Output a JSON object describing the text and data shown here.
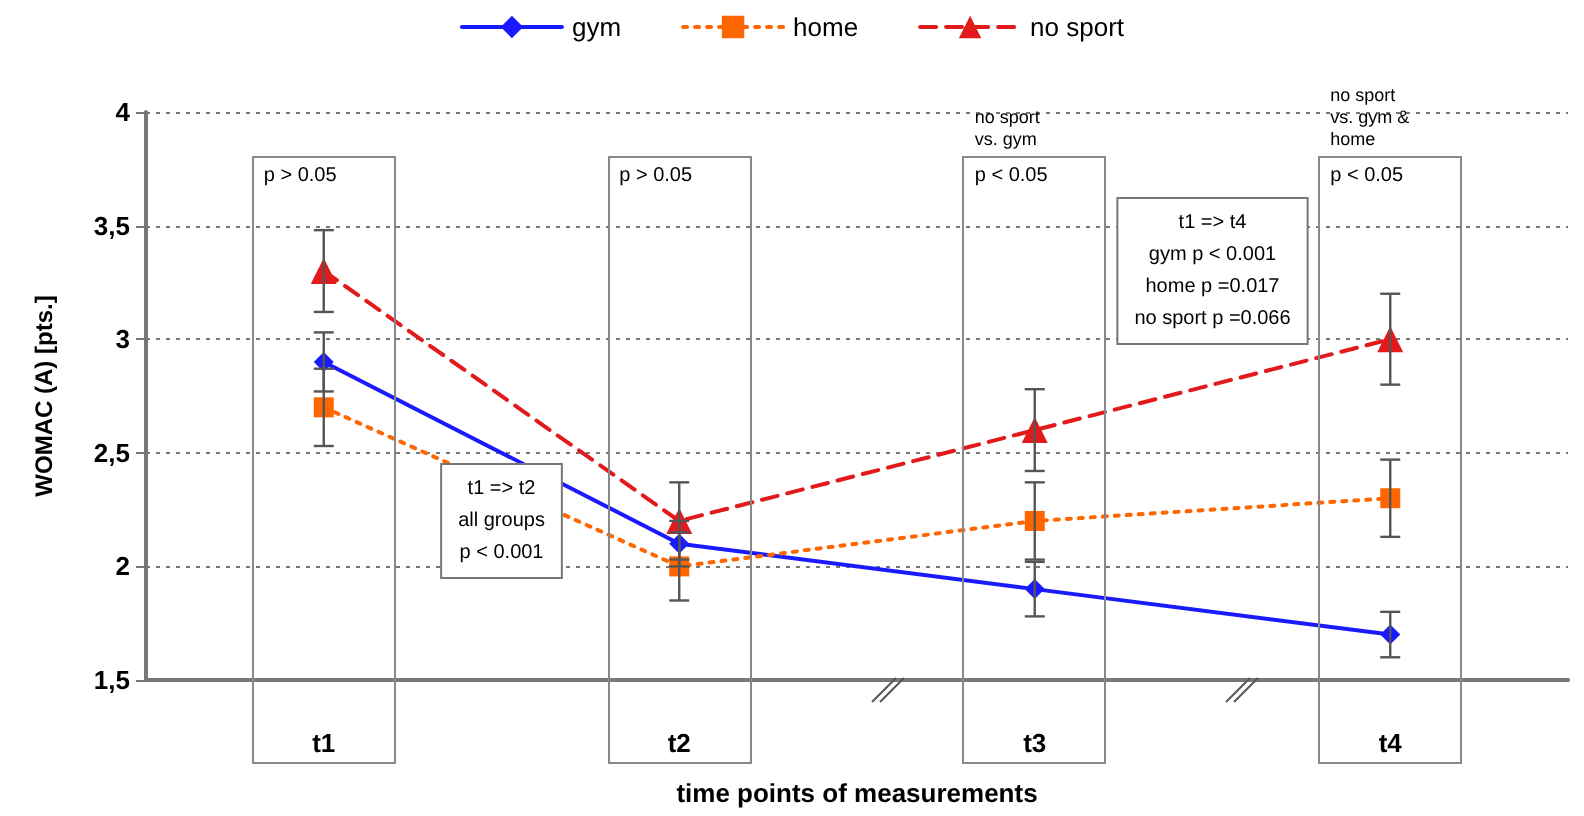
{
  "chart_data": {
    "type": "line",
    "xlabel": "time points of measurements",
    "ylabel": "WOMAC (A) [pts.]",
    "categories": [
      "t1",
      "t2",
      "t3",
      "t4"
    ],
    "series": [
      {
        "name": "gym",
        "color": "#1a1aff",
        "values": [
          2.9,
          2.1,
          1.9,
          1.7
        ],
        "errors": [
          0.13,
          0.1,
          0.12,
          0.1
        ],
        "marker": "diamond",
        "line_style": "solid"
      },
      {
        "name": "home",
        "color": "#ff6600",
        "values": [
          2.7,
          2.0,
          2.2,
          2.3
        ],
        "errors": [
          0.17,
          0.15,
          0.17,
          0.17
        ],
        "marker": "square",
        "line_style": "dotted"
      },
      {
        "name": "no sport",
        "color": "#e31a1c",
        "values": [
          3.3,
          2.2,
          2.6,
          3.0
        ],
        "errors": [
          0.18,
          0.17,
          0.18,
          0.2
        ],
        "marker": "triangle",
        "line_style": "dashed"
      }
    ],
    "ylim": [
      1.5,
      4
    ],
    "yticks": [
      {
        "value": 1.5,
        "label": "1,5"
      },
      2,
      {
        "value": 2.5,
        "label": "2,5"
      },
      3,
      {
        "value": 3.5,
        "label": "3,5"
      },
      4
    ],
    "grid": "y",
    "legend": "top",
    "annotations": [
      "p > 0.05",
      "p > 0.05",
      "p < 0.05",
      "p < 0.05",
      "no sport\nvs. gym",
      "no sport\nvs. gym &\nhome",
      "t1 => t2\nall groups\np < 0.001",
      "t1 => t4\ngym p < 0.001\nhome p =0.017\nno sport p =0.066"
    ]
  }
}
